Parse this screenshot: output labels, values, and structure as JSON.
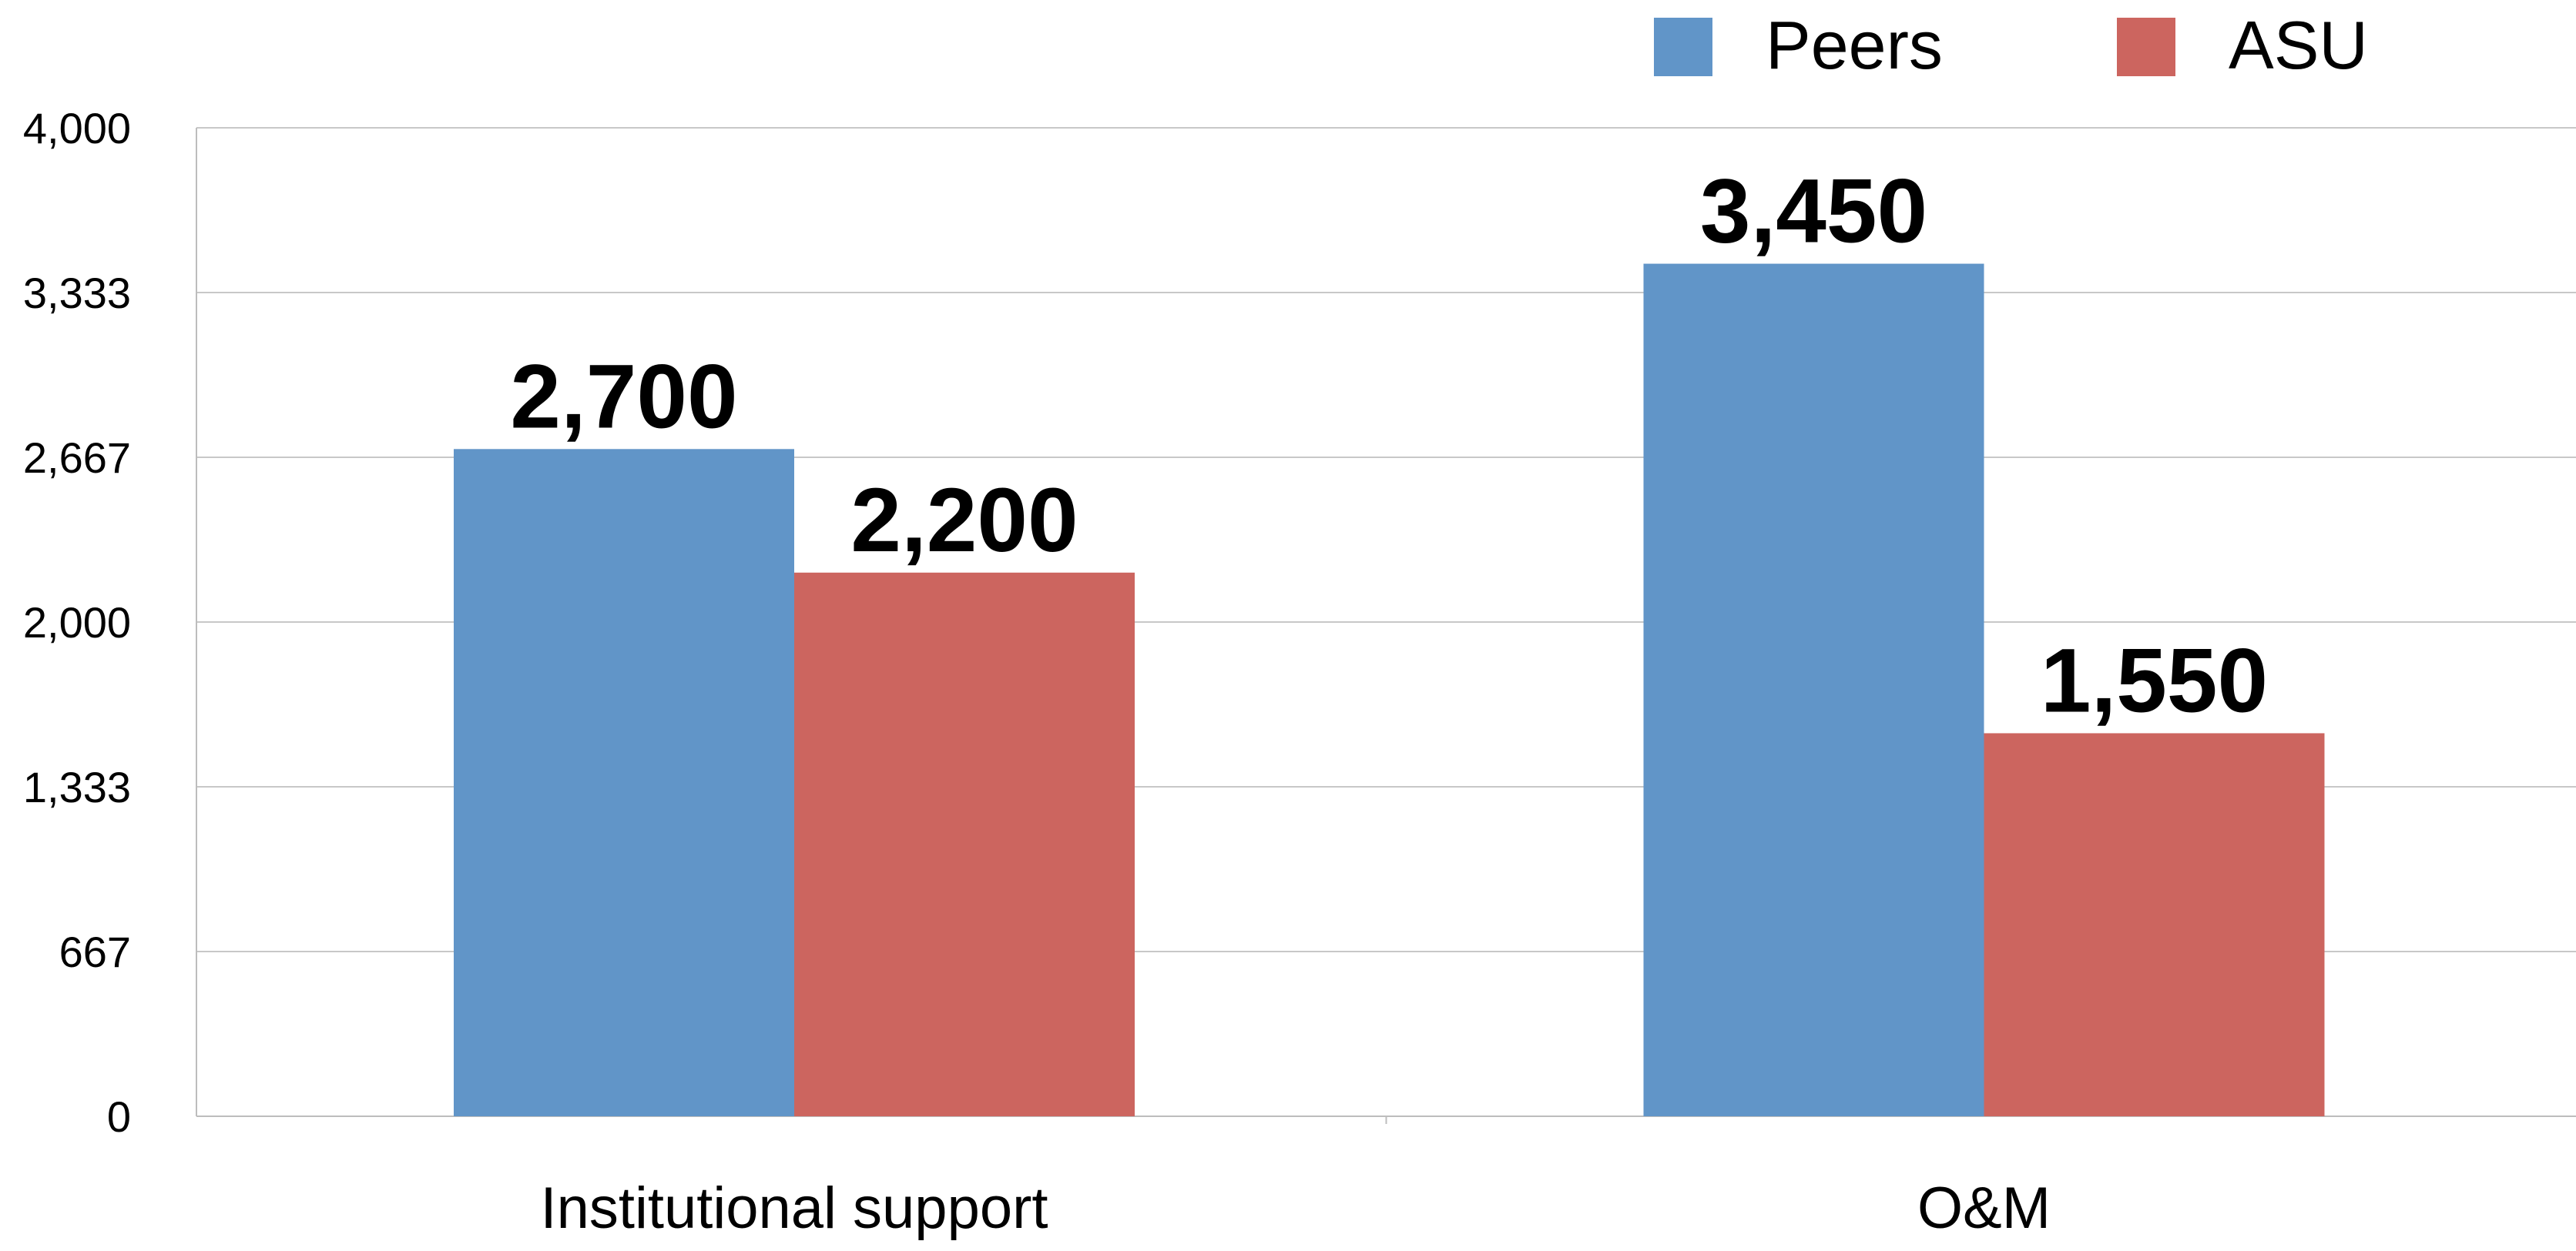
{
  "chart_data": {
    "type": "bar",
    "categories": [
      "Institutional support",
      "O&M"
    ],
    "series": [
      {
        "name": "Peers",
        "values": [
          2700,
          3450
        ],
        "color": "#6195C8"
      },
      {
        "name": "ASU",
        "values": [
          2200,
          1550
        ],
        "color": "#CC655F"
      }
    ],
    "data_labels": [
      [
        "2,700",
        "3,450"
      ],
      [
        "2,200",
        "1,550"
      ]
    ],
    "ylim": [
      0,
      4000
    ],
    "yticks": [
      0,
      666.67,
      1333.33,
      2000,
      2666.67,
      3333.33,
      4000
    ],
    "ytick_labels": [
      "0",
      "667",
      "1,333",
      "2,000",
      "2,667",
      "3,333",
      "4,000"
    ],
    "title": "",
    "xlabel": "",
    "ylabel": "",
    "grid": true,
    "legend_position": "top-right",
    "gridline_color": "#C8C8C8",
    "axis_color": "#BDBDBD"
  }
}
